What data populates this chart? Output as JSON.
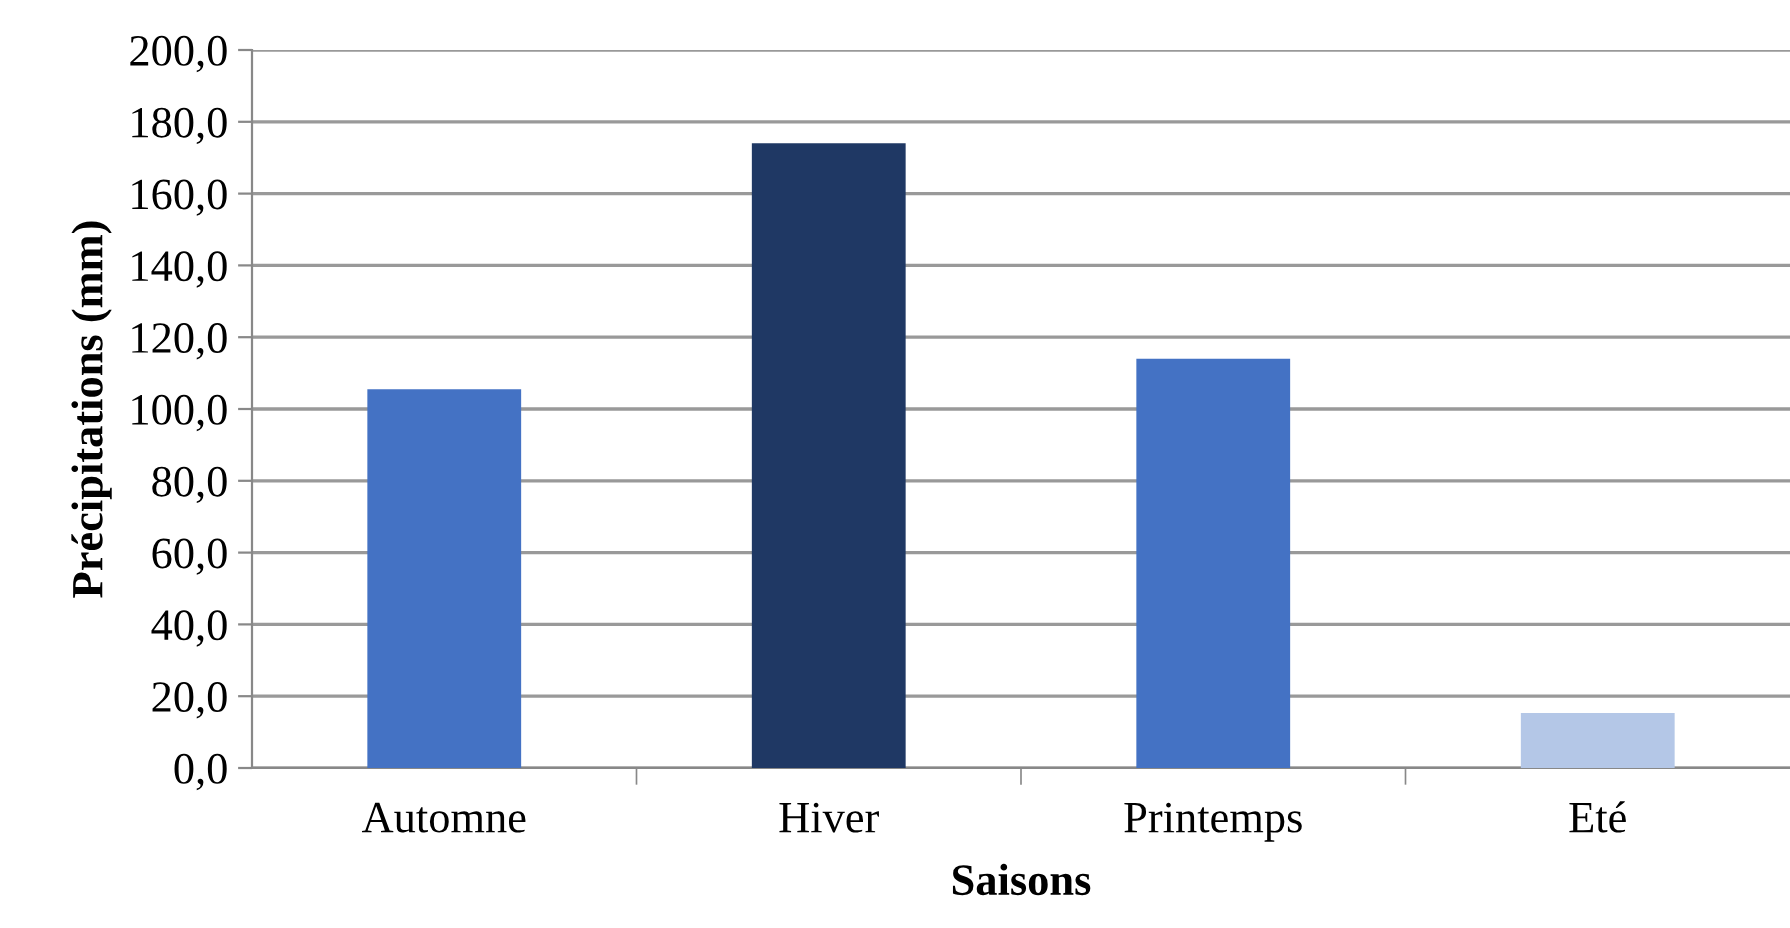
{
  "chart_data": {
    "type": "bar",
    "xlabel": "Saisons",
    "ylabel": "Précipitations (mm)",
    "categories": [
      "Automne",
      "Hiver",
      "Printemps",
      "Eté"
    ],
    "values": [
      105.5,
      174,
      114,
      15.3
    ],
    "colors": [
      "#4472c4",
      "#1f3864",
      "#4472c4",
      "#b4c7e7"
    ],
    "ylim": [
      0,
      200
    ],
    "yticks": [
      {
        "value": 0,
        "label": "0,0"
      },
      {
        "value": 20,
        "label": "20,0"
      },
      {
        "value": 40,
        "label": "40,0"
      },
      {
        "value": 60,
        "label": "60,0"
      },
      {
        "value": 80,
        "label": "80,0"
      },
      {
        "value": 100,
        "label": "100,0"
      },
      {
        "value": 120,
        "label": "120,0"
      },
      {
        "value": 140,
        "label": "140,0"
      },
      {
        "value": 160,
        "label": "160,0"
      },
      {
        "value": 180,
        "label": "180,0"
      },
      {
        "value": 200,
        "label": "200,0"
      }
    ],
    "grid": "y",
    "legend": false
  }
}
